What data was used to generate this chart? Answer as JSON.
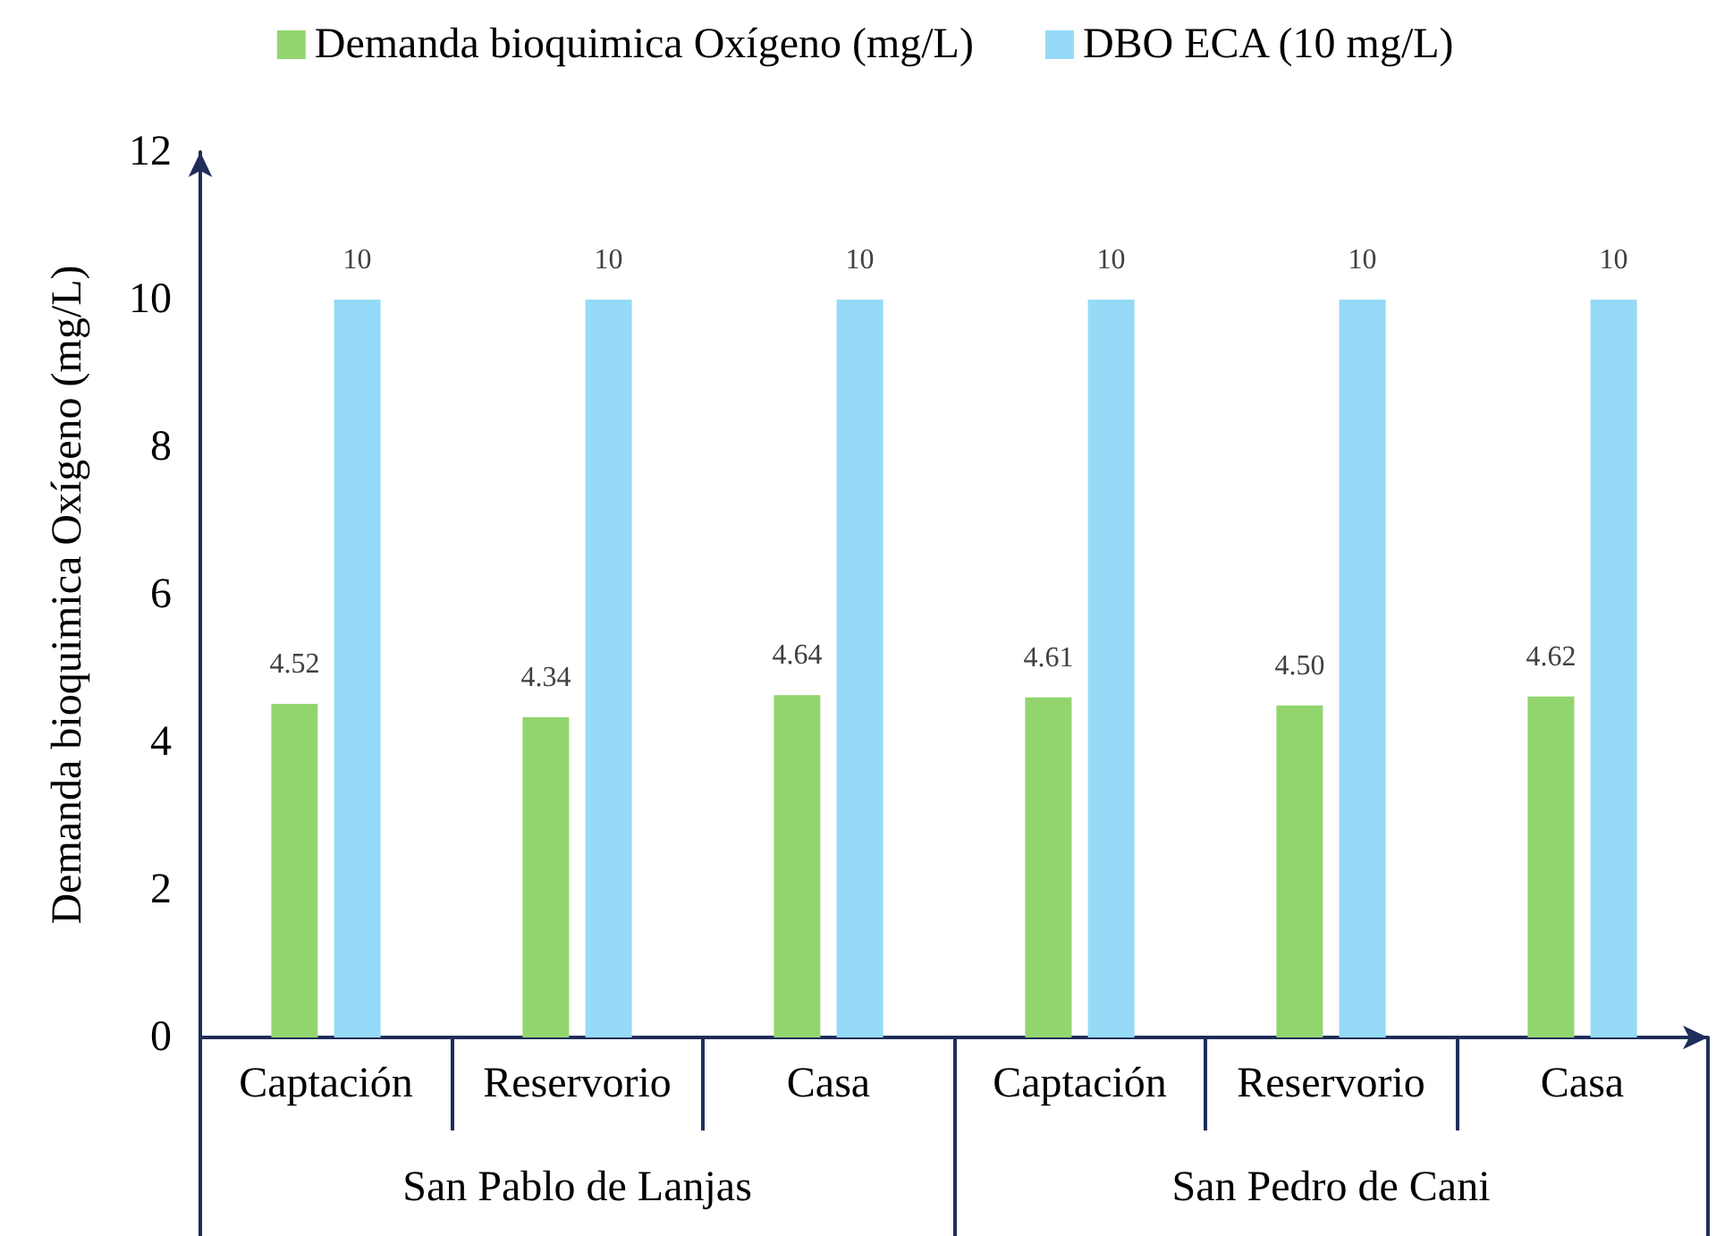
{
  "chart_data": {
    "type": "bar",
    "ylabel": "Demanda bioquimica Oxígeno (mg/L)",
    "categories": [
      "Captación",
      "Reservorio",
      "Casa",
      "Captación",
      "Reservorio",
      "Casa"
    ],
    "series": [
      {
        "name": "Demanda bioquimica Oxígeno (mg/L)",
        "color": "#92d56f",
        "values": [
          4.52,
          4.34,
          4.64,
          4.61,
          4.5,
          4.62
        ],
        "value_labels": [
          "4.52",
          "4.34",
          "4.64",
          "4.61",
          "4.50",
          "4.62"
        ]
      },
      {
        "name": "DBO ECA (10 mg/L)",
        "color": "#95daf6",
        "values": [
          10,
          10,
          10,
          10,
          10,
          10
        ],
        "value_labels": [
          "10",
          "10",
          "10",
          "10",
          "10",
          "10"
        ]
      }
    ],
    "annotations": [
      "San Pablo de Lanjas",
      "San Pedro de Cani"
    ],
    "ylim": [
      0,
      12
    ],
    "yticks": [
      0,
      2,
      4,
      6,
      8,
      10,
      12
    ],
    "grid": false,
    "legend": "top"
  }
}
